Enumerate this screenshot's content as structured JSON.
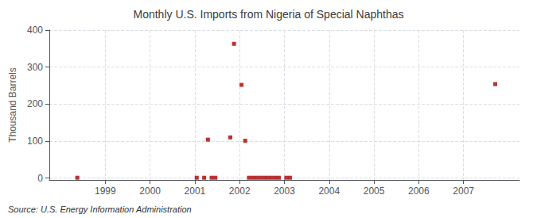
{
  "chart_data": {
    "type": "scatter",
    "title": "Monthly U.S. Imports from Nigeria of Special Naphthas",
    "ylabel": "Thousand Barrels",
    "source": "Source: U.S. Energy Information Administration",
    "x": [
      1998.375,
      2001.0416666666667,
      2001.2083333333333,
      2001.2916666666667,
      2001.375,
      2001.4583333333333,
      2001.7916666666667,
      2001.875,
      2002.0416666666667,
      2002.125,
      2002.2083333333333,
      2002.2916666666667,
      2002.375,
      2002.4583333333333,
      2002.5416666666667,
      2002.625,
      2002.7083333333333,
      2002.7916666666667,
      2002.875,
      2003.0416666666667,
      2003.125,
      2007.7083333333333
    ],
    "values": [
      1,
      1,
      1,
      104,
      1,
      1,
      110,
      363,
      252,
      101,
      1,
      1,
      1,
      1,
      1,
      1,
      1,
      1,
      1,
      1,
      1,
      254
    ],
    "color": "#aa0000",
    "marker": "square",
    "xlim": [
      1997.75,
      2008.25
    ],
    "xticks": [
      1999,
      2000,
      2001,
      2002,
      2003,
      2004,
      2005,
      2006,
      2007
    ],
    "ylim": [
      -5,
      400
    ],
    "yticks": [
      0,
      100,
      200,
      300,
      400
    ],
    "grid": true
  }
}
